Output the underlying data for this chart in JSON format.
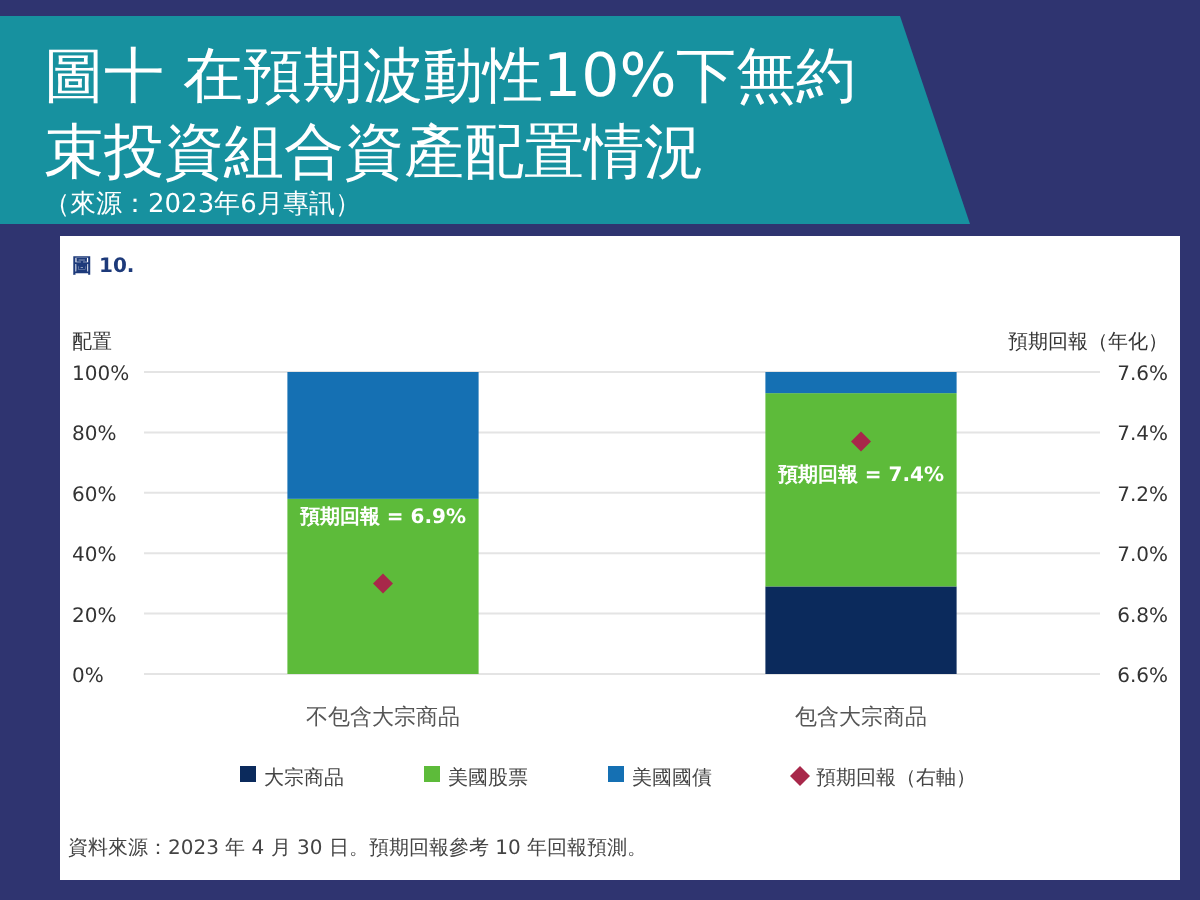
{
  "chart_data": {
    "type": "bar",
    "title": "圖十 在預期波動性10%下無約束投資組合資產配置情況",
    "subtitle": "（來源：2023年6月專訊）",
    "ylabel": "配置",
    "y2label": "預期回報（年化）",
    "categories": [
      "不包含大宗商品",
      "包含大宗商品"
    ],
    "stacked": true,
    "series": [
      {
        "name": "大宗商品",
        "color": "#0b2a5c",
        "values": [
          0,
          29
        ]
      },
      {
        "name": "美國股票",
        "color": "#5dbb3a",
        "values": [
          58,
          64
        ]
      },
      {
        "name": "美國國債",
        "color": "#1570b3",
        "values": [
          42,
          7
        ]
      },
      {
        "name": "預期回報（右軸）",
        "type": "scatter",
        "axis": "y2",
        "marker": "diamond",
        "color": "#a8284a",
        "values": [
          6.9,
          7.37
        ],
        "value_labels": [
          "預期回報 = 6.9%",
          "預期回報 = 7.4%"
        ]
      }
    ],
    "ylim": [
      0,
      100
    ],
    "yticks": [
      {
        "value": 0,
        "label": "0%"
      },
      {
        "value": 20,
        "label": "20%"
      },
      {
        "value": 40,
        "label": "40%"
      },
      {
        "value": 60,
        "label": "60%"
      },
      {
        "value": 80,
        "label": "80%"
      },
      {
        "value": 100,
        "label": "100%"
      }
    ],
    "y2lim": [
      6.6,
      7.6
    ],
    "y2ticks": [
      {
        "value": 6.6,
        "label": "6.6%"
      },
      {
        "value": 6.8,
        "label": "6.8%"
      },
      {
        "value": 7.0,
        "label": "7.0%"
      },
      {
        "value": 7.2,
        "label": "7.2%"
      },
      {
        "value": 7.4,
        "label": "7.4%"
      },
      {
        "value": 7.6,
        "label": "7.6%"
      }
    ],
    "grid": "y",
    "legend": "bottom",
    "annotations": [
      "圖 10.",
      "資料來源：2023 年 4 月 30 日。預期回報參考 10 年回報預測。"
    ]
  }
}
